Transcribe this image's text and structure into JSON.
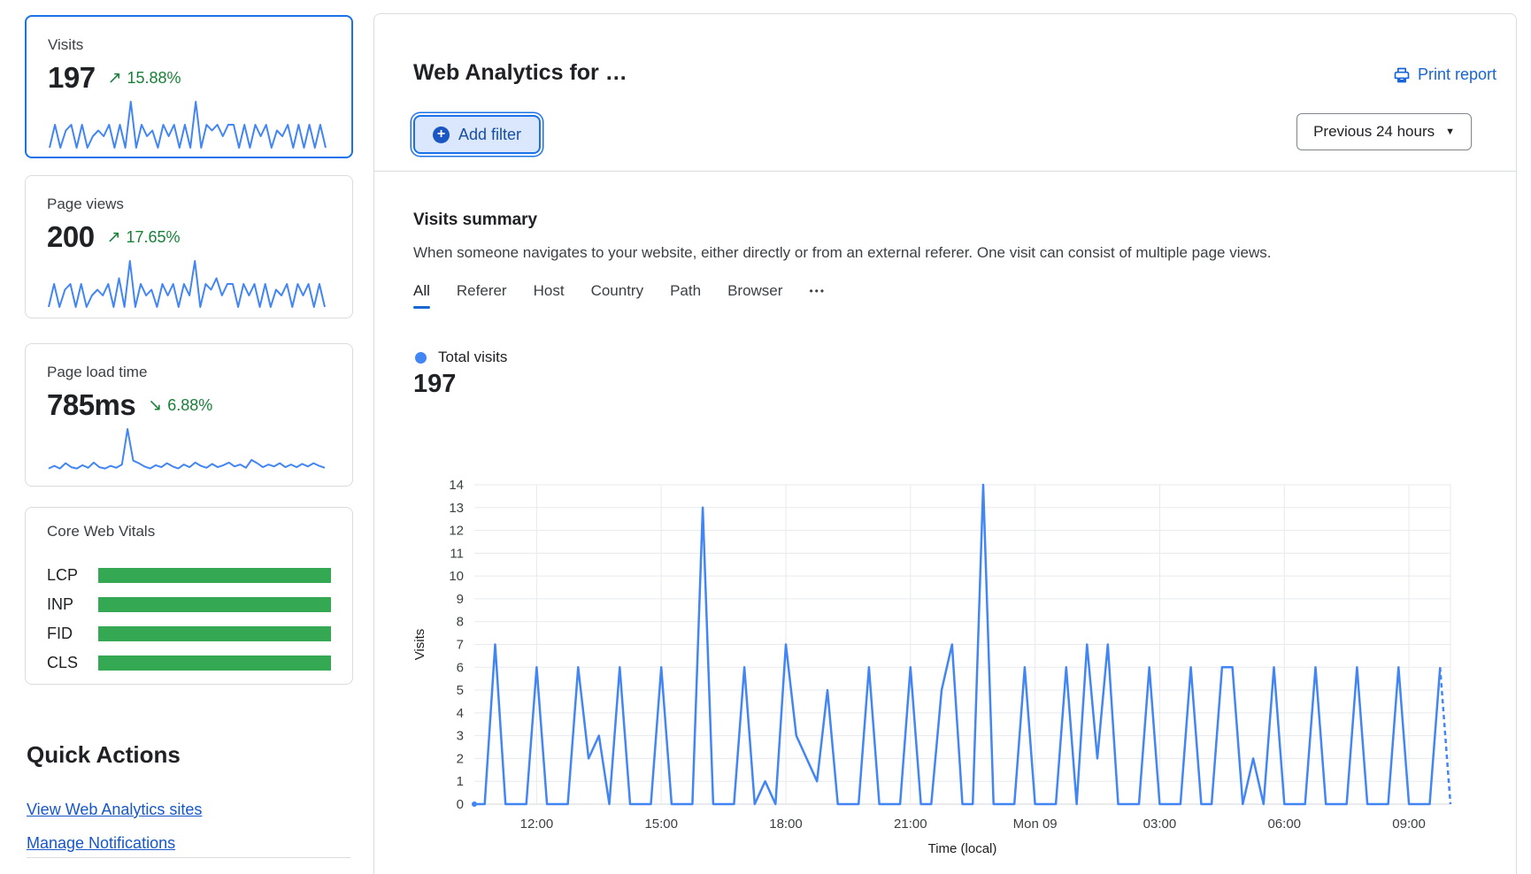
{
  "colors": {
    "accent_blue": "#1a73e8",
    "chart_line": "#4285f4",
    "link_blue": "#1665d8",
    "trend_green": "#188038",
    "bar_green": "#34a853",
    "grid": "#e8eaed",
    "axis_text": "#3c4043"
  },
  "icons": {
    "trend_up": "↗",
    "trend_down": "↘",
    "plus": "+",
    "dropdown_caret": "▼",
    "more_tab": "•••"
  },
  "sidebar": {
    "cards": [
      {
        "title": "Visits",
        "value": "197",
        "trend": "15.88%",
        "trend_icon": "↗",
        "selected": true
      },
      {
        "title": "Page views",
        "value": "200",
        "trend": "17.65%",
        "trend_icon": "↗",
        "selected": false
      },
      {
        "title": "Page load time",
        "value": "785ms",
        "trend": "6.88%",
        "trend_icon": "↘",
        "selected": false
      }
    ],
    "core_web_vitals": {
      "title": "Core Web Vitals",
      "metrics": [
        "LCP",
        "INP",
        "FID",
        "CLS"
      ]
    },
    "quick_actions": {
      "title": "Quick Actions",
      "links": [
        "View Web Analytics sites",
        "Manage Notifications"
      ]
    }
  },
  "header": {
    "title": "Web Analytics for …",
    "print_report": "Print report",
    "add_filter": "Add filter",
    "time_range": "Previous 24 hours"
  },
  "summary": {
    "title": "Visits summary",
    "description": "When someone navigates to your website, either directly or from an external referer. One visit can consist of multiple page views.",
    "tabs": [
      "All",
      "Referer",
      "Host",
      "Country",
      "Path",
      "Browser"
    ],
    "active_tab": "All",
    "legend": "Total visits",
    "total": "197"
  },
  "chart_data": [
    {
      "id": "visits-over-time",
      "type": "line",
      "title": "Visits summary",
      "ylabel": "Visits",
      "xlabel": "Time (local)",
      "ylim": [
        0,
        14
      ],
      "grid": true,
      "interval_minutes": 15,
      "values": [
        0,
        0,
        7,
        0,
        0,
        0,
        6,
        0,
        0,
        0,
        6,
        2,
        3,
        0,
        6,
        0,
        0,
        0,
        6,
        0,
        0,
        0,
        13,
        0,
        0,
        0,
        6,
        0,
        1,
        0,
        7,
        3,
        2,
        1,
        5,
        0,
        0,
        0,
        6,
        0,
        0,
        0,
        6,
        0,
        0,
        5,
        7,
        0,
        0,
        14,
        0,
        0,
        0,
        6,
        0,
        0,
        0,
        6,
        0,
        7,
        2,
        7,
        0,
        0,
        0,
        6,
        0,
        0,
        0,
        6,
        0,
        0,
        6,
        6,
        0,
        2,
        0,
        6,
        0,
        0,
        0,
        6,
        0,
        0,
        0,
        6,
        0,
        0,
        0,
        6,
        0,
        0,
        0,
        6,
        0
      ],
      "x_tick_indices": [
        6,
        18,
        30,
        42,
        54,
        66,
        78,
        90
      ],
      "x_tick_labels": [
        "12:00",
        "15:00",
        "18:00",
        "21:00",
        "Mon 09",
        "03:00",
        "06:00",
        "09:00"
      ],
      "dashed_tail": true
    },
    {
      "id": "visits-sparkline",
      "type": "line",
      "ymax": 8,
      "values": [
        0,
        4,
        0,
        3,
        4,
        0,
        4,
        0,
        2,
        3,
        2,
        4,
        0,
        4,
        0,
        8,
        0,
        4,
        2,
        3,
        0,
        4,
        2,
        4,
        0,
        4,
        0,
        8,
        0,
        4,
        3,
        4,
        2,
        4,
        4,
        0,
        4,
        0,
        4,
        2,
        4,
        0,
        3,
        2,
        4,
        0,
        4,
        0,
        4,
        0,
        4,
        0
      ]
    },
    {
      "id": "pageviews-sparkline",
      "type": "line",
      "ymax": 8,
      "values": [
        0,
        4,
        0,
        3,
        4,
        0,
        4,
        0,
        2,
        3,
        2,
        4,
        0,
        5,
        0,
        8,
        0,
        4,
        2,
        3,
        0,
        4,
        2,
        4,
        0,
        4,
        2,
        8,
        0,
        4,
        3,
        5,
        2,
        4,
        4,
        0,
        4,
        2,
        4,
        0,
        4,
        0,
        3,
        2,
        4,
        0,
        4,
        2,
        4,
        0,
        4,
        0
      ]
    },
    {
      "id": "loadtime-sparkline",
      "type": "line",
      "ymax": 7,
      "values": [
        1,
        1.4,
        1,
        1.8,
        1.2,
        1,
        1.5,
        1.1,
        1.9,
        1.2,
        1,
        1.4,
        1.1,
        1.6,
        7,
        2.2,
        1.8,
        1.3,
        1,
        1.5,
        1.2,
        1.8,
        1.3,
        1,
        1.6,
        1.2,
        1.9,
        1.4,
        1.1,
        1.7,
        1.2,
        1.5,
        1.9,
        1.3,
        1.6,
        1.1,
        2.3,
        1.8,
        1.2,
        1.6,
        1.3,
        1.8,
        1.2,
        1.6,
        1.2,
        1.7,
        1.3,
        1.8,
        1.4,
        1.1
      ]
    }
  ]
}
